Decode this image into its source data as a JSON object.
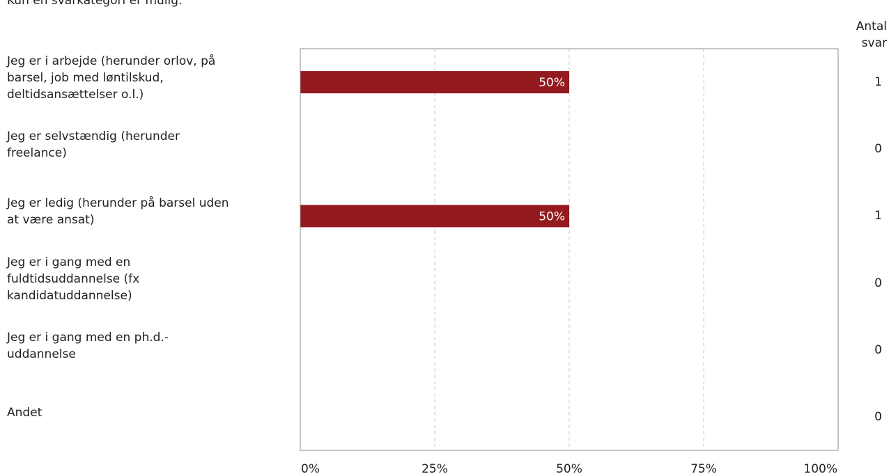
{
  "subtitle": "Kun én svarkategori er mulig.",
  "count_header": [
    "Antal",
    "svar"
  ],
  "chart_data": {
    "type": "bar",
    "orientation": "horizontal",
    "categories": [
      "Jeg er i arbejde (herunder orlov, på barsel, job med løntilskud, deltidsansættelser o.l.)",
      "Jeg er selvstændig (herunder freelance)",
      "Jeg er ledig (herunder på barsel uden at være ansat)",
      "Jeg er i gang med en fuldtidsuddannelse (fx kandidatuddannelse)",
      "Jeg er i gang med en ph.d.-uddannelse",
      "Andet"
    ],
    "category_lines": [
      [
        "Jeg er i arbejde (herunder orlov, på",
        "barsel, job med løntilskud,",
        "deltidsansættelser o.l.)"
      ],
      [
        "Jeg er selvstændig (herunder",
        "freelance)"
      ],
      [
        "Jeg er ledig (herunder på barsel uden",
        "at være ansat)"
      ],
      [
        "Jeg er i gang med en",
        "fuldtidsuddannelse (fx",
        "kandidatuddannelse)"
      ],
      [
        "Jeg er i gang med en ph.d.-",
        "uddannelse"
      ],
      [
        "Andet"
      ]
    ],
    "values": [
      50,
      0,
      50,
      0,
      0,
      0
    ],
    "data_labels": [
      "50%",
      "",
      "50%",
      "",
      "",
      ""
    ],
    "counts": [
      "1",
      "0",
      "1",
      "0",
      "0",
      "0"
    ],
    "x_ticks": [
      "0%",
      "25%",
      "50%",
      "75%",
      "100%"
    ],
    "xlim": [
      0,
      100
    ],
    "grid": true,
    "bar_color": "#931A1F"
  }
}
